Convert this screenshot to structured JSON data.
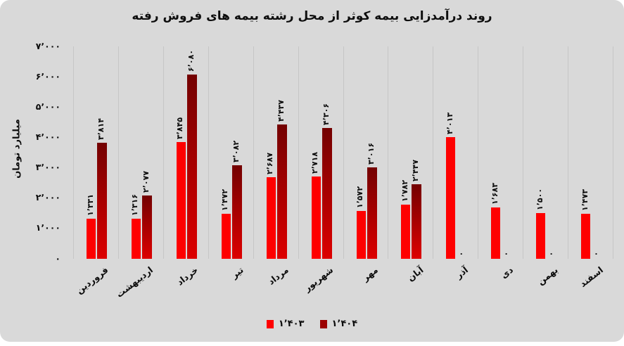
{
  "page": {
    "background": "#ffffff",
    "panel_background": "#d9d9d9",
    "gridline_color": "#c6c6c6"
  },
  "chart_data": {
    "type": "bar",
    "title": "روند درآمدزایی بیمه کوثر از محل رشته بیمه های فروش رفته",
    "xlabel": "",
    "ylabel": "میلیارد تومان",
    "ylim": [
      0,
      7000
    ],
    "grid": "vertical category separators only",
    "legend_position": "bottom-center",
    "categories": [
      "فروردین",
      "اردیبهشت",
      "خرداد",
      "تیر",
      "مرداد",
      "شهریور",
      "مهر",
      "آبان",
      "آذر",
      "دی",
      "بهمن",
      "اسفند"
    ],
    "yticks": {
      "values": [
        7000,
        6000,
        5000,
        4000,
        3000,
        2000,
        1000,
        0
      ],
      "labels": [
        "۷٬۰۰۰",
        "۶٬۰۰۰",
        "۵٬۰۰۰",
        "۴٬۰۰۰",
        "۳٬۰۰۰",
        "۲٬۰۰۰",
        "۱٬۰۰۰",
        "۰"
      ]
    },
    "series": [
      {
        "name": "۱٬۴۰۳",
        "color": "#fe0000",
        "values": [
          1331,
          1316,
          3845,
          1472,
          2687,
          2718,
          1572,
          1782,
          4013,
          1683,
          1500,
          1473
        ],
        "labels": [
          "۱٬۳۳۱",
          "۱٬۳۱۶",
          "۳٬۸۴۵",
          "۱٬۴۷۲",
          "۲٬۶۸۷",
          "۲٬۷۱۸",
          "۱٬۵۷۲",
          "۱٬۷۸۲",
          "۴٬۰۱۳",
          "۱٬۶۸۳",
          "۱٬۵۰۰",
          "۱٬۴۷۳"
        ]
      },
      {
        "name": "۱٬۴۰۴",
        "color": "#9b0000",
        "gradient_top": "#730101",
        "gradient_bottom": "#dd0000",
        "values": [
          3814,
          2077,
          6080,
          3082,
          4437,
          4306,
          3016,
          2447,
          0,
          0,
          0,
          0
        ],
        "labels": [
          "۳٬۸۱۴",
          "۲٬۰۷۷",
          "۶٬۰۸۰",
          "۳٬۰۸۲",
          "۴٬۴۳۷",
          "۴٬۳۰۶",
          "۳٬۰۱۶",
          "۲٬۴۴۷",
          "۰",
          "۰",
          "۰",
          "۰"
        ]
      }
    ]
  }
}
